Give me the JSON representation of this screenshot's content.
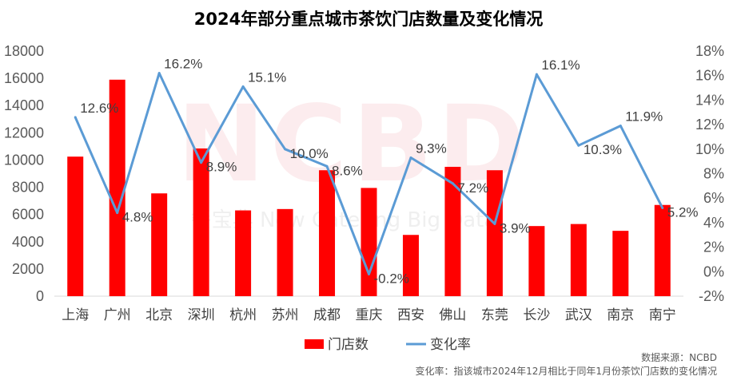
{
  "chart_data": {
    "type": "bar",
    "title": "2024年部分重点城市茶饮门店数量及变化情况",
    "categories": [
      "上海",
      "广州",
      "北京",
      "深圳",
      "杭州",
      "苏州",
      "成都",
      "重庆",
      "西安",
      "佛山",
      "东莞",
      "长沙",
      "武汉",
      "南京",
      "南宁"
    ],
    "series": [
      {
        "name": "门店数",
        "type": "bar",
        "axis": "left",
        "color": "#ff0000",
        "values": [
          10250,
          15900,
          7550,
          10850,
          6300,
          6400,
          9250,
          7950,
          4500,
          9500,
          9250,
          5150,
          5300,
          4800,
          6700
        ]
      },
      {
        "name": "变化率",
        "type": "line",
        "axis": "right",
        "color": "#5b9bd5",
        "values": [
          12.6,
          4.8,
          16.2,
          8.9,
          15.1,
          10.0,
          8.6,
          -0.2,
          9.3,
          7.2,
          3.9,
          16.1,
          10.3,
          11.9,
          5.2
        ],
        "labels": [
          "12.6%",
          "4.8%",
          "16.2%",
          "8.9%",
          "15.1%",
          "10.0%",
          "8.6%",
          "-0.2%",
          "9.3%",
          "7.2%",
          "3.9%",
          "16.1%",
          "10.3%",
          "11.9%",
          "5.2%"
        ]
      }
    ],
    "y_left": {
      "ylim": [
        0,
        18000
      ],
      "ticks": [
        "0",
        "2000",
        "4000",
        "6000",
        "8000",
        "10000",
        "12000",
        "14000",
        "16000",
        "18000"
      ]
    },
    "y_right": {
      "ylim": [
        -2,
        18
      ],
      "ticks": [
        "-2%",
        "0%",
        "2%",
        "4%",
        "6%",
        "8%",
        "10%",
        "12%",
        "14%",
        "16%",
        "18%"
      ]
    },
    "legend": {
      "position": "bottom",
      "entries": [
        "门店数",
        "变化率"
      ]
    },
    "grid": false,
    "watermark": {
      "logo": "NCBD",
      "text": "餐宝典 New Catering Big Data"
    },
    "source_note": "数据来源：NCBD",
    "footnote": "变化率：指该城市2024年12月相比于同年1月份茶饮门店数的变化情况"
  }
}
